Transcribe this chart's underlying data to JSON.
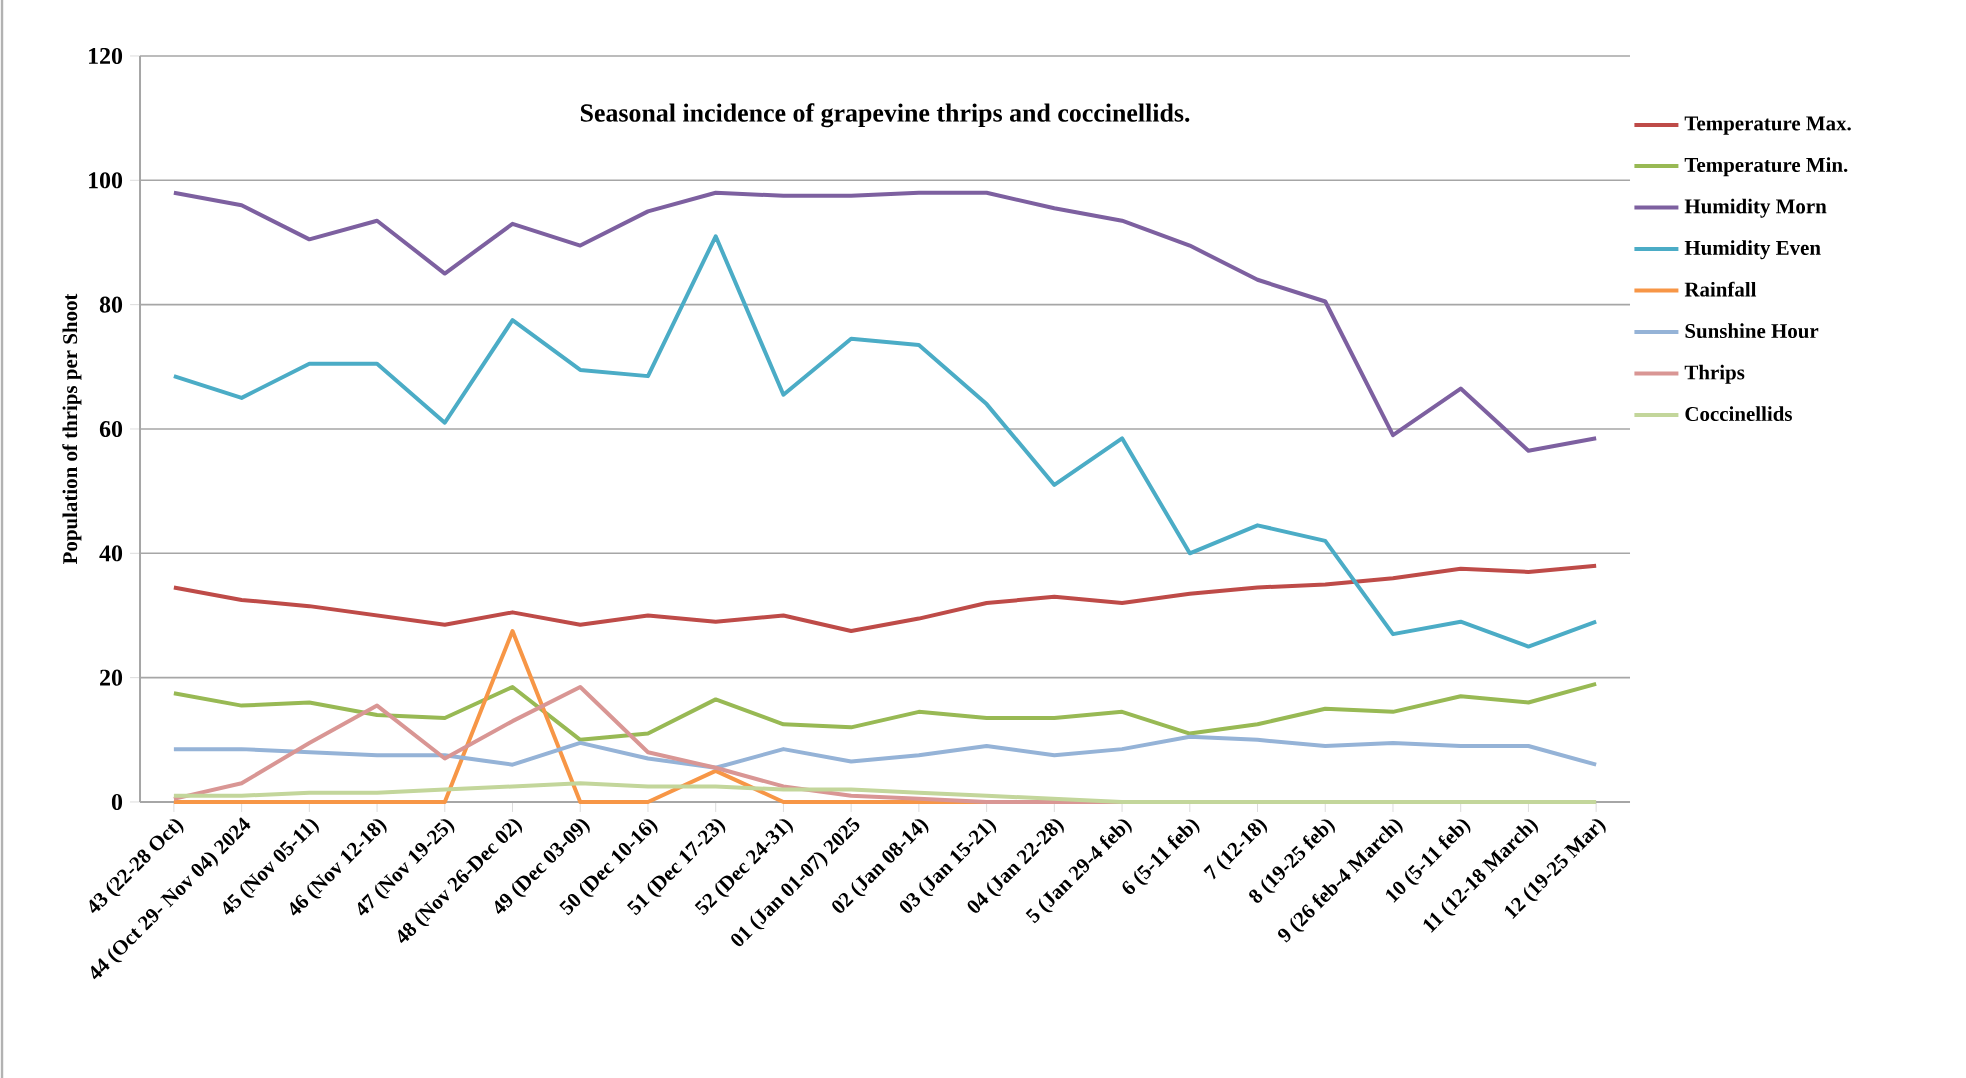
{
  "chart_data": {
    "type": "line",
    "title": "Seasonal incidence of grapevine thrips and coccinellids.",
    "ylabel": "Population of thrips per Shoot",
    "categories": [
      "43 (22-28 Oct)",
      "44 (Oct 29- Nov 04) 2024",
      "45 (Nov 05-11)",
      "46 (Nov 12-18)",
      "47 (Nov 19-25)",
      "48 (Nov 26-Dec 02)",
      "49 (Dec 03-09)",
      "50 (Dec 10-16)",
      "51 (Dec 17-23)",
      "52 (Dec 24-31)",
      "01 (Jan 01-07) 2025",
      "02 (Jan 08-14)",
      "03 (Jan 15-21)",
      "04 (Jan 22-28)",
      "5 (Jan 29-4 feb)",
      "6 (5-11 feb)",
      "7 (12-18)",
      "8 (19-25 feb)",
      "9 (26 feb-4 March)",
      "10 (5-11 feb)",
      "11 (12-18 March)",
      "12 (19-25 Mar)"
    ],
    "series": [
      {
        "name": "Temperature Max.",
        "color": "#be4b48",
        "values": [
          34.5,
          32.5,
          31.5,
          30,
          28.5,
          30.5,
          28.5,
          30,
          29,
          30,
          27.5,
          29.5,
          32,
          33,
          32,
          33.5,
          34.5,
          35,
          36,
          37.5,
          37,
          38
        ]
      },
      {
        "name": "Temperature Min.",
        "color": "#98b954",
        "values": [
          17.5,
          15.5,
          16,
          14,
          13.5,
          18.5,
          10,
          11,
          16.5,
          12.5,
          12,
          14.5,
          13.5,
          13.5,
          14.5,
          11,
          12.5,
          15,
          14.5,
          17,
          16,
          19
        ]
      },
      {
        "name": "Humidity Morn",
        "color": "#7d60a0",
        "values": [
          98,
          96,
          90.5,
          93.5,
          85,
          93,
          89.5,
          95,
          98,
          97.5,
          97.5,
          98,
          98,
          95.5,
          93.5,
          89.5,
          84,
          80.5,
          59,
          66.5,
          56.5,
          58.5
        ]
      },
      {
        "name": "Humidity Even",
        "color": "#4bacc6",
        "values": [
          68.5,
          65,
          70.5,
          70.5,
          61,
          77.5,
          69.5,
          68.5,
          91,
          65.5,
          74.5,
          73.5,
          64,
          51,
          58.5,
          40,
          44.5,
          42,
          27,
          29,
          25,
          29
        ]
      },
      {
        "name": "Rainfall",
        "color": "#f79646",
        "values": [
          0,
          0,
          0,
          0,
          0,
          27.5,
          0,
          0,
          5,
          0,
          0,
          0,
          0,
          0,
          null,
          null,
          null,
          null,
          null,
          null,
          null,
          null
        ]
      },
      {
        "name": "Sunshine Hour",
        "color": "#95b3d7",
        "values": [
          8.5,
          8.5,
          8,
          7.5,
          7.5,
          6,
          9.5,
          7,
          5.5,
          8.5,
          6.5,
          7.5,
          9,
          7.5,
          8.5,
          10.5,
          10,
          9,
          9.5,
          9,
          9,
          6
        ]
      },
      {
        "name": "Thrips",
        "color": "#d99694",
        "values": [
          0.5,
          3,
          9.5,
          15.5,
          7,
          13,
          18.5,
          8,
          5.5,
          2.5,
          1,
          0.5,
          0,
          0,
          0,
          0,
          null,
          null,
          null,
          null,
          null,
          null
        ]
      },
      {
        "name": "Coccinellids",
        "color": "#c3d69b",
        "values": [
          1,
          1,
          1.5,
          1.5,
          2,
          2.5,
          3,
          2.5,
          2.5,
          2,
          2,
          1.5,
          1,
          0.5,
          0,
          0,
          0,
          0,
          0,
          0,
          0,
          0
        ]
      }
    ],
    "ylim": [
      0,
      120
    ],
    "yticks": [
      0,
      20,
      40,
      60,
      80,
      100,
      120
    ],
    "grid": "y",
    "legend": "right",
    "marker": "none",
    "line_style": "solid"
  }
}
